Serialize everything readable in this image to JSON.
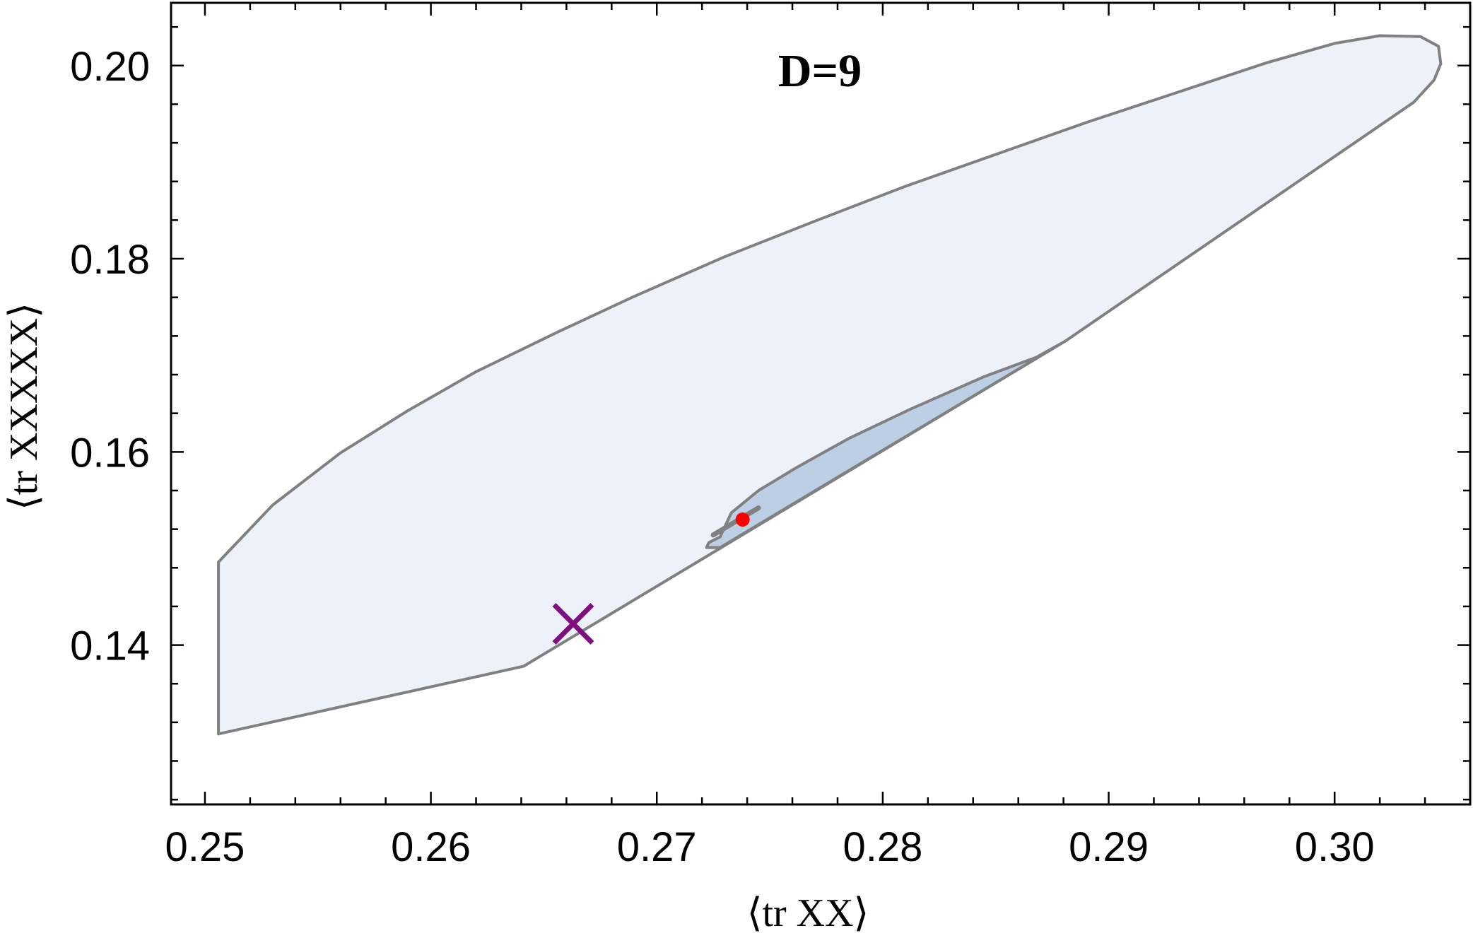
{
  "chart_data": {
    "type": "area",
    "title": "D=9",
    "xlabel": "⟨tr XX⟩",
    "ylabel": "⟨tr XXXXX⟩",
    "xlim": [
      0.2485,
      0.306
    ],
    "ylim": [
      0.1235,
      0.2065
    ],
    "x_ticks": [
      0.25,
      0.26,
      0.27,
      0.28,
      0.29,
      0.3
    ],
    "x_tick_labels": [
      "0.25",
      "0.26",
      "0.27",
      "0.28",
      "0.29",
      "0.30"
    ],
    "y_ticks": [
      0.14,
      0.16,
      0.18,
      0.2
    ],
    "y_tick_labels": [
      "0.14",
      "0.16",
      "0.18",
      "0.20"
    ],
    "grid": false,
    "colors": {
      "outer_fill": "#edf2fa",
      "inner_fill": "#bccfe5",
      "boundary": "#808080",
      "marker_point": "#ff0000",
      "marker_cross": "#7f0f7f"
    },
    "regions": [
      {
        "id": "outer",
        "x": [
          0.2506,
          0.2506,
          0.253,
          0.256,
          0.259,
          0.262,
          0.2656,
          0.269,
          0.273,
          0.277,
          0.281,
          0.285,
          0.289,
          0.293,
          0.297,
          0.3,
          0.302,
          0.3038,
          0.3046,
          0.3047,
          0.3044,
          0.3035,
          0.2881,
          0.2641,
          0.2506
        ],
        "y": [
          0.1308,
          0.1486,
          0.1545,
          0.1599,
          0.1643,
          0.1683,
          0.1724,
          0.1761,
          0.1802,
          0.1839,
          0.1875,
          0.1908,
          0.1941,
          0.1972,
          0.2003,
          0.2023,
          0.2031,
          0.203,
          0.202,
          0.2002,
          0.1985,
          0.1962,
          0.1715,
          0.1378,
          0.1308
        ]
      },
      {
        "id": "inner",
        "x": [
          0.2728,
          0.2733,
          0.2745,
          0.2762,
          0.2785,
          0.2812,
          0.2845,
          0.2868,
          0.2881,
          0.2728,
          0.2722,
          0.2723,
          0.2728
        ],
        "y": [
          0.1512,
          0.1537,
          0.156,
          0.1584,
          0.1614,
          0.1644,
          0.1678,
          0.1698,
          0.1715,
          0.1501,
          0.1501,
          0.1506,
          0.1512
        ]
      }
    ],
    "segments": [
      {
        "id": "inner-line",
        "x": [
          0.2725,
          0.2745
        ],
        "y": [
          0.1514,
          0.1542
        ]
      }
    ],
    "markers": [
      {
        "id": "red-point",
        "shape": "circle",
        "x": 0.2738,
        "y": 0.153
      },
      {
        "id": "purple-cross",
        "shape": "cross",
        "x": 0.2663,
        "y": 0.1422
      }
    ]
  }
}
